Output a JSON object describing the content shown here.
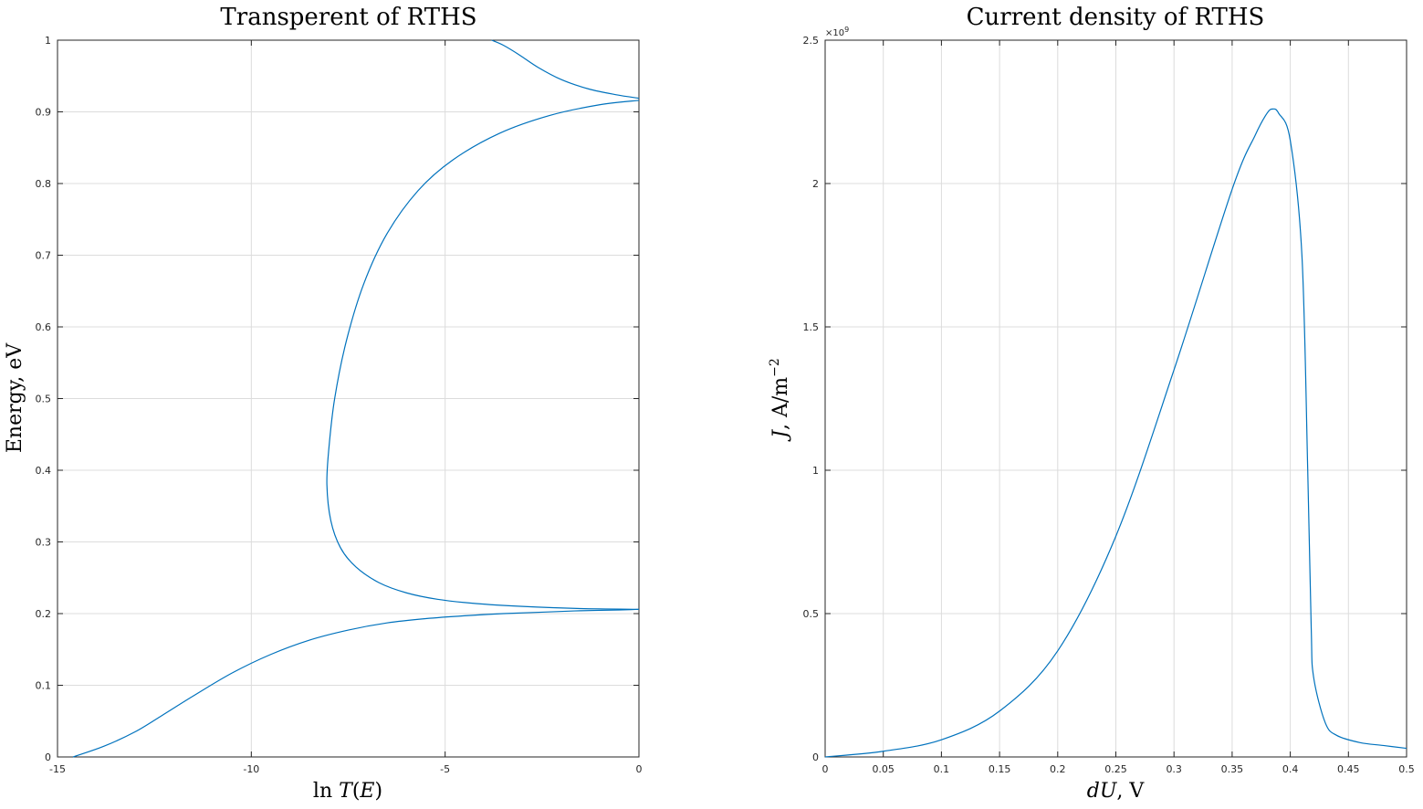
{
  "chart_data": [
    {
      "type": "line",
      "title": "Transperent of RTHS",
      "xlabel": "ln T(E)",
      "ylabel": "Energy, eV",
      "xlim": [
        -15,
        0
      ],
      "ylim": [
        0,
        1
      ],
      "xticks": [
        -15,
        -10,
        -5,
        0
      ],
      "xtick_labels": [
        "-15",
        "-10",
        "-5",
        "0"
      ],
      "yticks": [
        0,
        0.1,
        0.2,
        0.3,
        0.4,
        0.5,
        0.6,
        0.7,
        0.8,
        0.9,
        1
      ],
      "ytick_labels": [
        "0",
        "0.1",
        "0.2",
        "0.3",
        "0.4",
        "0.5",
        "0.6",
        "0.7",
        "0.8",
        "0.9",
        "1"
      ],
      "grid": true,
      "color": "#0072BD",
      "series": [
        {
          "points": [
            [
              -14.6,
              0.0
            ],
            [
              -13.8,
              0.015
            ],
            [
              -13.0,
              0.035
            ],
            [
              -12.3,
              0.058
            ],
            [
              -11.5,
              0.085
            ],
            [
              -10.5,
              0.117
            ],
            [
              -9.5,
              0.143
            ],
            [
              -8.5,
              0.163
            ],
            [
              -7.5,
              0.177
            ],
            [
              -6.5,
              0.187
            ],
            [
              -5.5,
              0.193
            ],
            [
              -4.5,
              0.197
            ],
            [
              -3.5,
              0.2
            ],
            [
              -2.5,
              0.202
            ],
            [
              -1.5,
              0.204
            ],
            [
              -0.5,
              0.205
            ],
            [
              0.0,
              0.206
            ]
          ]
        },
        {
          "points": [
            [
              0.0,
              0.206
            ],
            [
              -1.5,
              0.207
            ],
            [
              -3.0,
              0.21
            ],
            [
              -4.2,
              0.214
            ],
            [
              -5.2,
              0.22
            ],
            [
              -6.0,
              0.229
            ],
            [
              -6.7,
              0.243
            ],
            [
              -7.3,
              0.265
            ],
            [
              -7.7,
              0.292
            ],
            [
              -7.95,
              0.33
            ],
            [
              -8.05,
              0.38
            ],
            [
              -8.0,
              0.43
            ],
            [
              -7.85,
              0.5
            ],
            [
              -7.55,
              0.58
            ],
            [
              -7.1,
              0.66
            ],
            [
              -6.5,
              0.73
            ],
            [
              -5.7,
              0.79
            ],
            [
              -4.8,
              0.833
            ],
            [
              -3.6,
              0.87
            ],
            [
              -2.3,
              0.895
            ],
            [
              -1.0,
              0.91
            ],
            [
              0.0,
              0.916
            ]
          ]
        },
        {
          "points": [
            [
              0.0,
              0.919
            ],
            [
              -0.6,
              0.924
            ],
            [
              -1.3,
              0.932
            ],
            [
              -2.0,
              0.945
            ],
            [
              -2.6,
              0.962
            ],
            [
              -3.1,
              0.98
            ],
            [
              -3.5,
              0.993
            ],
            [
              -3.8,
              1.0
            ]
          ]
        }
      ]
    },
    {
      "type": "line",
      "title": "Current density of RTHS",
      "xlabel": "dU, V",
      "ylabel": "J, A/m^-2",
      "ylabel_parts": {
        "var": "J",
        "unit": ", A/m",
        "exp": "−2"
      },
      "xlabel_parts": {
        "var": "dU",
        "unit": ", V"
      },
      "y_multiplier": {
        "base": "×10",
        "exp": "9"
      },
      "xlim": [
        0,
        0.5
      ],
      "ylim": [
        0,
        2.5
      ],
      "xticks": [
        0,
        0.05,
        0.1,
        0.15,
        0.2,
        0.25,
        0.3,
        0.35,
        0.4,
        0.45,
        0.5
      ],
      "xtick_labels": [
        "0",
        "0.05",
        "0.1",
        "0.15",
        "0.2",
        "0.25",
        "0.3",
        "0.35",
        "0.4",
        "0.45",
        "0.5"
      ],
      "yticks": [
        0,
        0.5,
        1,
        1.5,
        2,
        2.5
      ],
      "ytick_labels": [
        "0",
        "0.5",
        "1",
        "1.5",
        "2",
        "2.5"
      ],
      "grid": true,
      "color": "#0072BD",
      "series": [
        {
          "points": [
            [
              0.0,
              0.0
            ],
            [
              0.05,
              0.02
            ],
            [
              0.1,
              0.06
            ],
            [
              0.15,
              0.16
            ],
            [
              0.2,
              0.37
            ],
            [
              0.25,
              0.77
            ],
            [
              0.3,
              1.35
            ],
            [
              0.35,
              1.98
            ],
            [
              0.37,
              2.17
            ],
            [
              0.38,
              2.245
            ],
            [
              0.385,
              2.26
            ],
            [
              0.39,
              2.245
            ],
            [
              0.4,
              2.15
            ],
            [
              0.41,
              1.75
            ],
            [
              0.415,
              1.0
            ],
            [
              0.418,
              0.45
            ],
            [
              0.42,
              0.28
            ],
            [
              0.43,
              0.12
            ],
            [
              0.44,
              0.075
            ],
            [
              0.46,
              0.05
            ],
            [
              0.48,
              0.04
            ],
            [
              0.5,
              0.03
            ]
          ]
        }
      ]
    }
  ]
}
